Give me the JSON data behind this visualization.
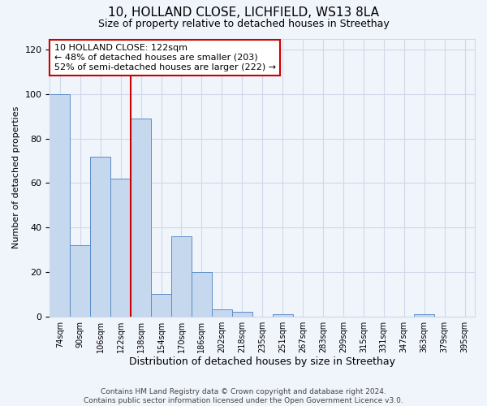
{
  "title1": "10, HOLLAND CLOSE, LICHFIELD, WS13 8LA",
  "title2": "Size of property relative to detached houses in Streethay",
  "xlabel": "Distribution of detached houses by size in Streethay",
  "ylabel": "Number of detached properties",
  "footer": "Contains HM Land Registry data © Crown copyright and database right 2024.\nContains public sector information licensed under the Open Government Licence v3.0.",
  "categories": [
    "74sqm",
    "90sqm",
    "106sqm",
    "122sqm",
    "138sqm",
    "154sqm",
    "170sqm",
    "186sqm",
    "202sqm",
    "218sqm",
    "235sqm",
    "251sqm",
    "267sqm",
    "283sqm",
    "299sqm",
    "315sqm",
    "331sqm",
    "347sqm",
    "363sqm",
    "379sqm",
    "395sqm"
  ],
  "values": [
    100,
    32,
    72,
    62,
    89,
    10,
    36,
    20,
    3,
    2,
    0,
    1,
    0,
    0,
    0,
    0,
    0,
    0,
    1,
    0,
    0
  ],
  "bar_color": "#c5d8ee",
  "bar_edge_color": "#5b8dc8",
  "vline_index": 3.5,
  "vline_color": "#cc0000",
  "annotation_text": "10 HOLLAND CLOSE: 122sqm\n← 48% of detached houses are smaller (203)\n52% of semi-detached houses are larger (222) →",
  "annotation_box_color": "#cc0000",
  "ylim": [
    0,
    125
  ],
  "yticks": [
    0,
    20,
    40,
    60,
    80,
    100,
    120
  ],
  "grid_color": "#d0d8e8",
  "bg_color": "#f0f4fb",
  "bar_width": 1.0,
  "title1_fontsize": 11,
  "title2_fontsize": 9,
  "xlabel_fontsize": 9,
  "ylabel_fontsize": 8,
  "tick_fontsize": 8,
  "annot_fontsize": 8,
  "footer_fontsize": 6.5
}
